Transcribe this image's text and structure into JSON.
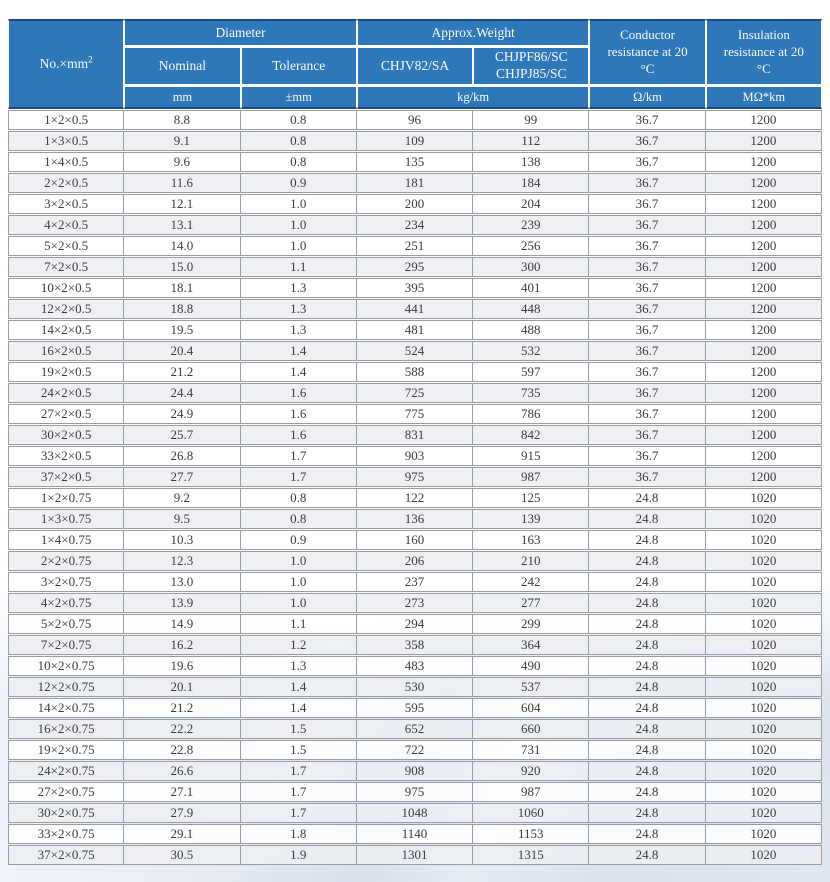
{
  "table": {
    "header": {
      "no_label": "No.×mm",
      "no_sup": "2",
      "diameter": "Diameter",
      "approx_weight": "Approx.Weight",
      "nominal": "Nominal",
      "tolerance": "Tolerance",
      "chjv": "CHJV82/SA",
      "chjpf_line1": "CHJPF86/SC",
      "chjpf_line2": "CHJPJ85/SC",
      "conductor": "Conductor resistance at 20 °C",
      "insulation": "Insulation resistance at 20 °C",
      "units": [
        "mm",
        "±mm",
        "kg/km",
        "Ω/km",
        "MΩ*km"
      ]
    },
    "rows": [
      [
        "1×2×0.5",
        "8.8",
        "0.8",
        "96",
        "99",
        "36.7",
        "1200"
      ],
      [
        "1×3×0.5",
        "9.1",
        "0.8",
        "109",
        "112",
        "36.7",
        "1200"
      ],
      [
        "1×4×0.5",
        "9.6",
        "0.8",
        "135",
        "138",
        "36.7",
        "1200"
      ],
      [
        "2×2×0.5",
        "11.6",
        "0.9",
        "181",
        "184",
        "36.7",
        "1200"
      ],
      [
        "3×2×0.5",
        "12.1",
        "1.0",
        "200",
        "204",
        "36.7",
        "1200"
      ],
      [
        "4×2×0.5",
        "13.1",
        "1.0",
        "234",
        "239",
        "36.7",
        "1200"
      ],
      [
        "5×2×0.5",
        "14.0",
        "1.0",
        "251",
        "256",
        "36.7",
        "1200"
      ],
      [
        "7×2×0.5",
        "15.0",
        "1.1",
        "295",
        "300",
        "36.7",
        "1200"
      ],
      [
        "10×2×0.5",
        "18.1",
        "1.3",
        "395",
        "401",
        "36.7",
        "1200"
      ],
      [
        "12×2×0.5",
        "18.8",
        "1.3",
        "441",
        "448",
        "36.7",
        "1200"
      ],
      [
        "14×2×0.5",
        "19.5",
        "1.3",
        "481",
        "488",
        "36.7",
        "1200"
      ],
      [
        "16×2×0.5",
        "20.4",
        "1.4",
        "524",
        "532",
        "36.7",
        "1200"
      ],
      [
        "19×2×0.5",
        "21.2",
        "1.4",
        "588",
        "597",
        "36.7",
        "1200"
      ],
      [
        "24×2×0.5",
        "24.4",
        "1.6",
        "725",
        "735",
        "36.7",
        "1200"
      ],
      [
        "27×2×0.5",
        "24.9",
        "1.6",
        "775",
        "786",
        "36.7",
        "1200"
      ],
      [
        "30×2×0.5",
        "25.7",
        "1.6",
        "831",
        "842",
        "36.7",
        "1200"
      ],
      [
        "33×2×0.5",
        "26.8",
        "1.7",
        "903",
        "915",
        "36.7",
        "1200"
      ],
      [
        "37×2×0.5",
        "27.7",
        "1.7",
        "975",
        "987",
        "36.7",
        "1200"
      ],
      [
        "1×2×0.75",
        "9.2",
        "0.8",
        "122",
        "125",
        "24.8",
        "1020"
      ],
      [
        "1×3×0.75",
        "9.5",
        "0.8",
        "136",
        "139",
        "24.8",
        "1020"
      ],
      [
        "1×4×0.75",
        "10.3",
        "0.9",
        "160",
        "163",
        "24.8",
        "1020"
      ],
      [
        "2×2×0.75",
        "12.3",
        "1.0",
        "206",
        "210",
        "24.8",
        "1020"
      ],
      [
        "3×2×0.75",
        "13.0",
        "1.0",
        "237",
        "242",
        "24.8",
        "1020"
      ],
      [
        "4×2×0.75",
        "13.9",
        "1.0",
        "273",
        "277",
        "24.8",
        "1020"
      ],
      [
        "5×2×0.75",
        "14.9",
        "1.1",
        "294",
        "299",
        "24.8",
        "1020"
      ],
      [
        "7×2×0.75",
        "16.2",
        "1.2",
        "358",
        "364",
        "24.8",
        "1020"
      ],
      [
        "10×2×0.75",
        "19.6",
        "1.3",
        "483",
        "490",
        "24.8",
        "1020"
      ],
      [
        "12×2×0.75",
        "20.1",
        "1.4",
        "530",
        "537",
        "24.8",
        "1020"
      ],
      [
        "14×2×0.75",
        "21.2",
        "1.4",
        "595",
        "604",
        "24.8",
        "1020"
      ],
      [
        "16×2×0.75",
        "22.2",
        "1.5",
        "652",
        "660",
        "24.8",
        "1020"
      ],
      [
        "19×2×0.75",
        "22.8",
        "1.5",
        "722",
        "731",
        "24.8",
        "1020"
      ],
      [
        "24×2×0.75",
        "26.6",
        "1.7",
        "908",
        "920",
        "24.8",
        "1020"
      ],
      [
        "27×2×0.75",
        "27.1",
        "1.7",
        "975",
        "987",
        "24.8",
        "1020"
      ],
      [
        "30×2×0.75",
        "27.9",
        "1.7",
        "1048",
        "1060",
        "24.8",
        "1020"
      ],
      [
        "33×2×0.75",
        "29.1",
        "1.8",
        "1140",
        "1153",
        "24.8",
        "1020"
      ],
      [
        "37×2×0.75",
        "30.5",
        "1.9",
        "1301",
        "1315",
        "24.8",
        "1020"
      ]
    ]
  },
  "colors": {
    "header_bg": "#2e77b8",
    "header_text": "#ffffff",
    "navy_rule": "#1e4976",
    "grid_gray": "#989da4",
    "row_alt": "#edeef2",
    "data_text": "#3c3c3c"
  }
}
